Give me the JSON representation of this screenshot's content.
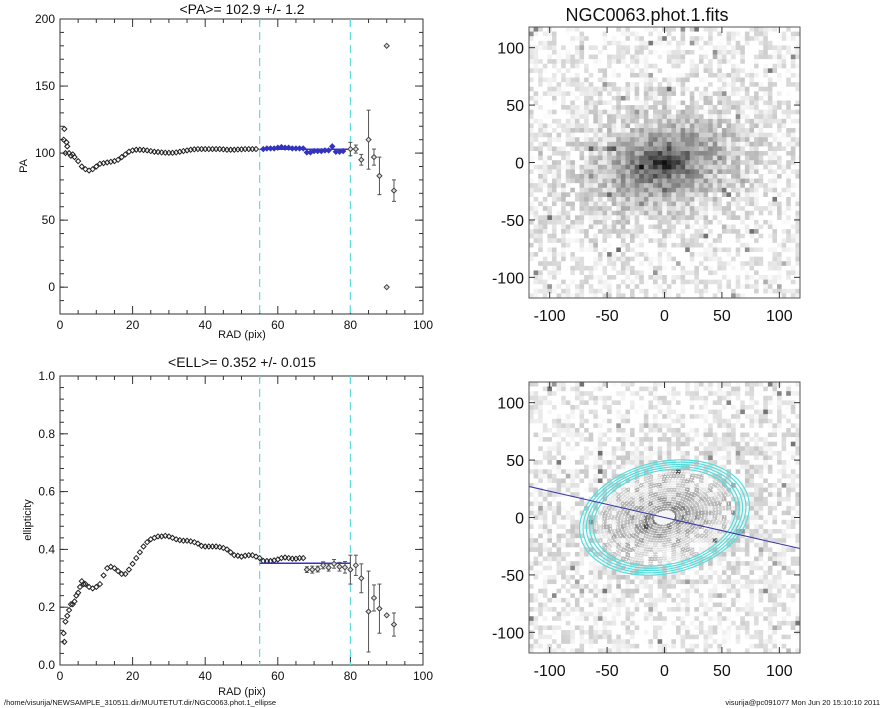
{
  "colors": {
    "fit_points": "#3333bb",
    "fit_line": "#3333cc",
    "range_lines": "#66dddd",
    "points": "#333333",
    "contours_outer": "#55dddd",
    "contours_inner": "#ffffff",
    "pa_line": "#3333aa"
  },
  "footer": {
    "path": "/home/visurija/NEWSAMPLE_310511.dir/MUUTETUT.dir/NGC0063.phot.1_ellipse",
    "user_date": "visurija@pc091077  Mon Jun 20 15:10:10 2011"
  },
  "chart_data": [
    {
      "id": "pa",
      "type": "scatter",
      "title": "<PA>= 102.9 +/-   1.2",
      "xlabel": "RAD (pix)",
      "ylabel": "PA",
      "xlim": [
        0,
        100
      ],
      "ylim": [
        -20,
        200
      ],
      "xticks": [
        0,
        20,
        40,
        60,
        80,
        100
      ],
      "yticks": [
        0,
        50,
        100,
        150,
        200
      ],
      "fit_range": [
        55,
        80
      ],
      "fit_value": 102.9,
      "points": [
        [
          1,
          110
        ],
        [
          1.2,
          118
        ],
        [
          1.5,
          100
        ],
        [
          1.8,
          108
        ],
        [
          2,
          105
        ],
        [
          2.5,
          100
        ],
        [
          3,
          98
        ],
        [
          3.5,
          99
        ],
        [
          4,
          97
        ],
        [
          5,
          94
        ],
        [
          6,
          90
        ],
        [
          7,
          88
        ],
        [
          8,
          87
        ],
        [
          9,
          88
        ],
        [
          10,
          90
        ],
        [
          11,
          92
        ],
        [
          12,
          92.5
        ],
        [
          13,
          93
        ],
        [
          14,
          93.5
        ],
        [
          15,
          94
        ],
        [
          16,
          95
        ],
        [
          17,
          97
        ],
        [
          18,
          99
        ],
        [
          19,
          101
        ],
        [
          20,
          102
        ],
        [
          21,
          102.5
        ],
        [
          22,
          102.5
        ],
        [
          23,
          102.3
        ],
        [
          24,
          102
        ],
        [
          25,
          101.5
        ],
        [
          26,
          101
        ],
        [
          27,
          100.8
        ],
        [
          28,
          100.5
        ],
        [
          29,
          100.3
        ],
        [
          30,
          100.2
        ],
        [
          31,
          100.2
        ],
        [
          32,
          100.5
        ],
        [
          33,
          101
        ],
        [
          34,
          101.5
        ],
        [
          35,
          102
        ],
        [
          36,
          102.5
        ],
        [
          37,
          102.8
        ],
        [
          38,
          103
        ],
        [
          39,
          103
        ],
        [
          40,
          103
        ],
        [
          41,
          103
        ],
        [
          42,
          103
        ],
        [
          43,
          103
        ],
        [
          44,
          103
        ],
        [
          45,
          102.8
        ],
        [
          46,
          102.5
        ],
        [
          47,
          102.5
        ],
        [
          48,
          102.5
        ],
        [
          49,
          102.7
        ],
        [
          50,
          102.8
        ],
        [
          51,
          103
        ],
        [
          52,
          103
        ],
        [
          53,
          103
        ],
        [
          54,
          103
        ]
      ],
      "fit_points": [
        [
          56,
          103
        ],
        [
          57,
          103.5
        ],
        [
          58,
          103.5
        ],
        [
          59,
          103.5
        ],
        [
          60,
          104
        ],
        [
          61,
          104.5
        ],
        [
          62,
          104
        ],
        [
          63,
          104
        ],
        [
          64,
          103.5
        ],
        [
          65,
          103.5
        ],
        [
          66,
          103.5
        ],
        [
          67,
          103.5
        ],
        [
          68,
          100.5
        ],
        [
          69,
          100.5
        ],
        [
          70,
          101.5
        ],
        [
          71,
          101.5
        ],
        [
          72,
          101.5
        ],
        [
          73,
          102
        ],
        [
          74,
          102
        ],
        [
          75,
          105
        ],
        [
          76,
          101
        ],
        [
          77,
          101
        ],
        [
          78,
          101.5
        ]
      ],
      "error_points": [
        [
          80,
          103,
          5
        ],
        [
          81.5,
          103,
          3
        ],
        [
          83,
          95,
          4
        ],
        [
          85,
          110,
          22
        ],
        [
          86.5,
          97,
          6
        ],
        [
          88,
          83,
          14
        ],
        [
          90,
          180,
          0
        ],
        [
          90,
          0,
          0
        ],
        [
          92,
          72,
          8
        ]
      ]
    },
    {
      "id": "ell",
      "type": "scatter",
      "title": "<ELL>= 0.352 +/-  0.015",
      "xlabel": "RAD (pix)",
      "ylabel": "ellipticity",
      "xlim": [
        0,
        100
      ],
      "ylim": [
        0,
        1
      ],
      "xticks": [
        0,
        20,
        40,
        60,
        80,
        100
      ],
      "yticks": [
        "0.0",
        "0.2",
        "0.4",
        "0.6",
        "0.8",
        "1.0"
      ],
      "fit_range": [
        55,
        80
      ],
      "fit_value": 0.352,
      "points": [
        [
          1,
          0.11
        ],
        [
          1.2,
          0.08
        ],
        [
          1.5,
          0.15
        ],
        [
          2,
          0.17
        ],
        [
          2.5,
          0.19
        ],
        [
          3,
          0.21
        ],
        [
          3.5,
          0.21
        ],
        [
          4,
          0.22
        ],
        [
          4.5,
          0.24
        ],
        [
          5,
          0.25
        ],
        [
          5.5,
          0.27
        ],
        [
          6,
          0.29
        ],
        [
          6.5,
          0.28
        ],
        [
          7,
          0.28
        ],
        [
          8,
          0.27
        ],
        [
          9,
          0.265
        ],
        [
          10,
          0.27
        ],
        [
          11,
          0.28
        ],
        [
          12,
          0.31
        ],
        [
          13,
          0.335
        ],
        [
          14,
          0.34
        ],
        [
          15,
          0.335
        ],
        [
          16,
          0.325
        ],
        [
          17,
          0.315
        ],
        [
          18,
          0.315
        ],
        [
          19,
          0.33
        ],
        [
          20,
          0.35
        ],
        [
          21,
          0.37
        ],
        [
          22,
          0.39
        ],
        [
          23,
          0.41
        ],
        [
          24,
          0.425
        ],
        [
          25,
          0.435
        ],
        [
          26,
          0.44
        ],
        [
          27,
          0.445
        ],
        [
          28,
          0.445
        ],
        [
          29,
          0.447
        ],
        [
          30,
          0.445
        ],
        [
          31,
          0.44
        ],
        [
          32,
          0.435
        ],
        [
          33,
          0.432
        ],
        [
          34,
          0.43
        ],
        [
          35,
          0.43
        ],
        [
          36,
          0.428
        ],
        [
          37,
          0.425
        ],
        [
          38,
          0.42
        ],
        [
          39,
          0.412
        ],
        [
          40,
          0.41
        ],
        [
          41,
          0.41
        ],
        [
          42,
          0.41
        ],
        [
          43,
          0.41
        ],
        [
          44,
          0.408
        ],
        [
          45,
          0.405
        ],
        [
          46,
          0.4
        ],
        [
          47,
          0.39
        ],
        [
          48,
          0.38
        ],
        [
          49,
          0.378
        ],
        [
          50,
          0.375
        ],
        [
          51,
          0.378
        ],
        [
          52,
          0.38
        ],
        [
          53,
          0.38
        ],
        [
          54,
          0.375
        ],
        [
          55,
          0.37
        ],
        [
          56,
          0.36
        ],
        [
          57,
          0.36
        ],
        [
          58,
          0.36
        ],
        [
          59,
          0.362
        ],
        [
          60,
          0.365
        ],
        [
          61,
          0.37
        ],
        [
          62,
          0.372
        ],
        [
          63,
          0.37
        ],
        [
          64,
          0.368
        ],
        [
          65,
          0.368
        ],
        [
          66,
          0.37
        ],
        [
          67,
          0.37
        ]
      ],
      "error_points": [
        [
          68,
          0.33,
          0.01
        ],
        [
          69.5,
          0.33,
          0.012
        ],
        [
          71,
          0.332,
          0.01
        ],
        [
          72.5,
          0.345,
          0.012
        ],
        [
          74,
          0.337,
          0.012
        ],
        [
          75.5,
          0.35,
          0.015
        ],
        [
          77,
          0.34,
          0.015
        ],
        [
          78.5,
          0.338,
          0.02
        ],
        [
          80,
          0.33,
          0.05
        ],
        [
          81.5,
          0.345,
          0.035
        ],
        [
          83,
          0.3,
          0.05
        ],
        [
          85,
          0.185,
          0.14
        ],
        [
          86.5,
          0.232,
          0.045
        ],
        [
          88,
          0.195,
          0.085
        ],
        [
          90,
          0.172,
          0
        ],
        [
          92,
          0.14,
          0.04
        ]
      ]
    },
    {
      "id": "img1",
      "type": "heatmap",
      "title": "NGC0063.phot.1.fits",
      "xlim": [
        -118,
        118
      ],
      "ylim": [
        -118,
        118
      ],
      "xticks": [
        -100,
        -50,
        0,
        50,
        100
      ],
      "yticks": [
        -100,
        -50,
        0,
        50,
        100
      ],
      "colormap": "gray-inverted"
    },
    {
      "id": "img2",
      "type": "heatmap",
      "title": "",
      "xlim": [
        -118,
        118
      ],
      "ylim": [
        -118,
        118
      ],
      "xticks": [
        -100,
        -50,
        0,
        50,
        100
      ],
      "yticks": [
        -100,
        -50,
        0,
        50,
        100
      ],
      "colormap": "gray-inverted",
      "overlay": {
        "ellipse_pa_deg": 102.9,
        "ellipticity": 0.352,
        "max_semi_major": 75
      }
    }
  ]
}
